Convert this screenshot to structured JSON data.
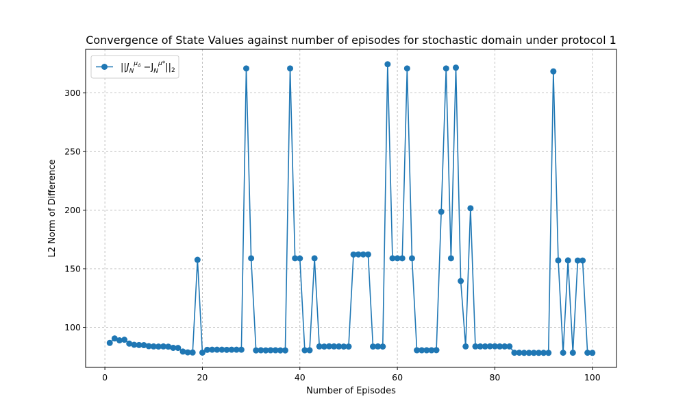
{
  "chart_data": {
    "type": "line",
    "title": "Convergence of State Values against number of episodes for stochastic domain under protocol 1",
    "xlabel": "Number of Episodes",
    "ylabel": "L2 Norm of Difference",
    "xlim": [
      -3.95,
      104.95
    ],
    "ylim": [
      65.8,
      337.2
    ],
    "xticks": [
      0,
      20,
      40,
      60,
      80,
      100
    ],
    "yticks": [
      100,
      150,
      200,
      250,
      300
    ],
    "grid": true,
    "legend_position": "top-left",
    "color": "#1f77b4",
    "marker": "circle",
    "series": [
      {
        "legend_label": "||J_N^{μ_ô} − J_N^{μ*}||₂",
        "x": [
          1,
          2,
          3,
          4,
          5,
          6,
          7,
          8,
          9,
          10,
          11,
          12,
          13,
          14,
          15,
          16,
          17,
          18,
          19,
          20,
          21,
          22,
          23,
          24,
          25,
          26,
          27,
          28,
          29,
          30,
          31,
          32,
          33,
          34,
          35,
          36,
          37,
          38,
          39,
          40,
          41,
          42,
          43,
          44,
          45,
          46,
          47,
          48,
          49,
          50,
          51,
          52,
          53,
          54,
          55,
          56,
          57,
          58,
          59,
          60,
          61,
          62,
          63,
          64,
          65,
          66,
          67,
          68,
          69,
          70,
          71,
          72,
          73,
          74,
          75,
          76,
          77,
          78,
          79,
          80,
          81,
          82,
          83,
          84,
          85,
          86,
          87,
          88,
          89,
          90,
          91,
          92,
          93,
          94,
          95,
          96,
          97,
          98,
          99,
          100
        ],
        "y": [
          86.7,
          90.5,
          88.9,
          89.4,
          86.1,
          85.1,
          84.9,
          84.8,
          83.9,
          83.7,
          83.6,
          83.7,
          83.5,
          82.5,
          82.4,
          79.3,
          78.6,
          78.5,
          157.6,
          78.4,
          80.8,
          80.9,
          80.9,
          80.9,
          80.8,
          80.9,
          80.9,
          80.9,
          320.9,
          158.9,
          80.3,
          80.4,
          80.3,
          80.4,
          80.4,
          80.3,
          80.3,
          320.9,
          158.9,
          158.8,
          80.4,
          80.4,
          158.9,
          83.7,
          83.6,
          83.8,
          83.7,
          83.7,
          83.6,
          83.6,
          162.1,
          162.2,
          162.2,
          162.2,
          83.6,
          83.7,
          83.6,
          324.5,
          158.9,
          158.9,
          158.9,
          320.9,
          158.9,
          80.4,
          80.4,
          80.4,
          80.4,
          80.5,
          198.6,
          320.9,
          158.9,
          321.6,
          139.5,
          83.7,
          201.6,
          83.7,
          83.7,
          83.7,
          83.8,
          83.8,
          83.7,
          83.7,
          83.7,
          78.3,
          78.3,
          78.2,
          78.2,
          78.2,
          78.2,
          78.2,
          78.2,
          318.4,
          157.1,
          78.3,
          157.1,
          78.3,
          157.0,
          157.0,
          78.3,
          78.2
        ]
      }
    ]
  }
}
